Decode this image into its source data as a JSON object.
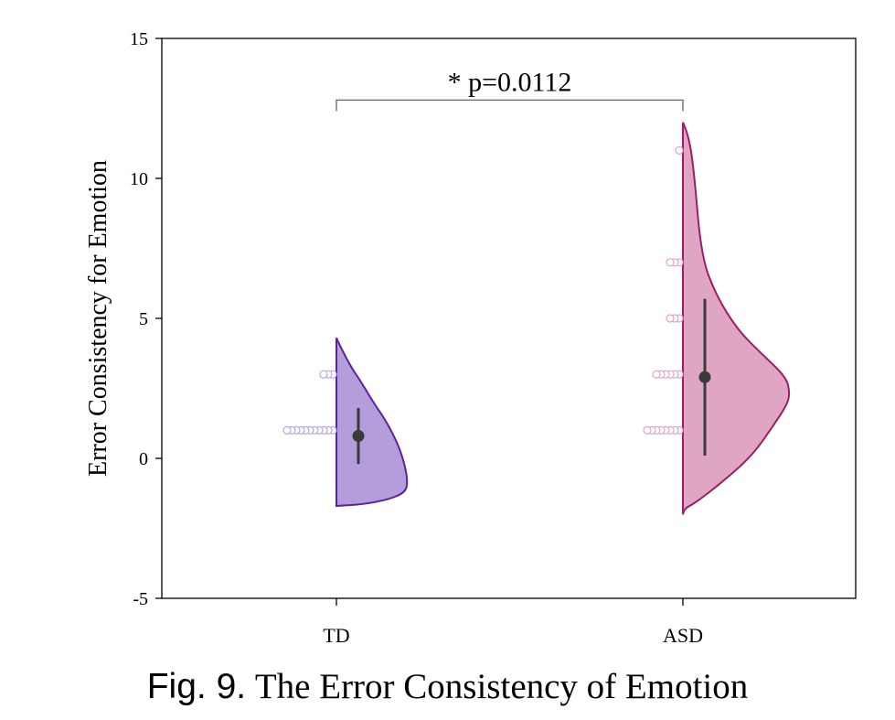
{
  "chart_data": {
    "type": "violin",
    "ylabel": "Error Consistency for Emotion",
    "ylim": [
      -5,
      15
    ],
    "yticks": [
      "-5",
      "0",
      "5",
      "10",
      "15"
    ],
    "categories": [
      "TD",
      "ASD"
    ],
    "grid": false,
    "series": [
      {
        "name": "TD",
        "color": "#b39ddb",
        "edge_color": "#5e1fa3",
        "point_color": "#b9a6de",
        "mean": 0.8,
        "ci": [
          -0.2,
          1.8
        ],
        "range": [
          -1.7,
          4.3
        ],
        "points": [
          {
            "y": 1,
            "count": 11
          },
          {
            "y": 3,
            "count": 3
          }
        ]
      },
      {
        "name": "ASD",
        "color": "#dfa6c4",
        "edge_color": "#a41a6a",
        "point_color": "#e0a3c4",
        "mean": 2.9,
        "ci": [
          0.1,
          5.7
        ],
        "range": [
          -2.0,
          12.0
        ],
        "points": [
          {
            "y": 1,
            "count": 8
          },
          {
            "y": 3,
            "count": 6
          },
          {
            "y": 5,
            "count": 3
          },
          {
            "y": 7,
            "count": 3
          },
          {
            "y": 11,
            "count": 1
          }
        ]
      }
    ],
    "annotation": {
      "text": "* p=0.0112",
      "between": [
        "TD",
        "ASD"
      ],
      "y": 12.8
    }
  },
  "caption": {
    "fig": "Fig. 9.",
    "text": "The Error Consistency of Emotion"
  },
  "mark_color": "#3a3a3a"
}
